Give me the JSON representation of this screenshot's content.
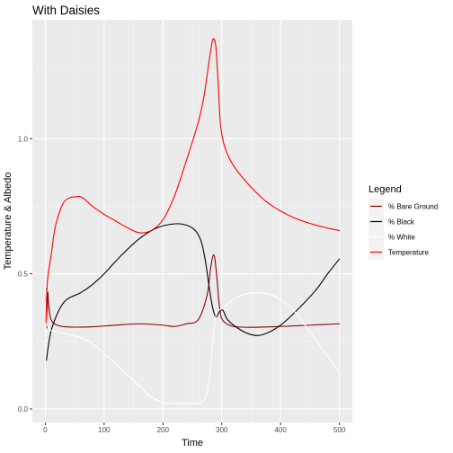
{
  "chart_data": {
    "type": "line",
    "title": "With Daisies",
    "xlabel": "Time",
    "ylabel": "Temperature & Albedo",
    "xlim": [
      -22,
      522
    ],
    "ylim": [
      -0.05,
      1.44
    ],
    "x_ticks": [
      0,
      100,
      200,
      300,
      400,
      500
    ],
    "y_ticks": [
      0.0,
      0.5,
      1.0
    ],
    "x_tick_labels": [
      "0",
      "100",
      "200",
      "300",
      "400",
      "500"
    ],
    "y_tick_labels": [
      "0.0",
      "0.5",
      "1.0"
    ],
    "grid": true,
    "legend": {
      "title": "Legend",
      "position": "right",
      "entries": [
        "% Bare Ground",
        "% Black",
        "% White",
        "Temperature"
      ]
    },
    "series": [
      {
        "name": "% Bare Ground",
        "color": "#8b0000",
        "points": [
          [
            1,
            0.4
          ],
          [
            2,
            0.44
          ],
          [
            3,
            0.3
          ],
          [
            4,
            0.43
          ],
          [
            6,
            0.38
          ],
          [
            10,
            0.33
          ],
          [
            20,
            0.31
          ],
          [
            40,
            0.303
          ],
          [
            80,
            0.304
          ],
          [
            120,
            0.31
          ],
          [
            160,
            0.315
          ],
          [
            200,
            0.31
          ],
          [
            220,
            0.305
          ],
          [
            240,
            0.315
          ],
          [
            260,
            0.33
          ],
          [
            275,
            0.42
          ],
          [
            281,
            0.52
          ],
          [
            285,
            0.565
          ],
          [
            288,
            0.56
          ],
          [
            292,
            0.48
          ],
          [
            295,
            0.4
          ],
          [
            298,
            0.35
          ],
          [
            300,
            0.335
          ],
          [
            305,
            0.32
          ],
          [
            320,
            0.305
          ],
          [
            350,
            0.302
          ],
          [
            400,
            0.305
          ],
          [
            450,
            0.31
          ],
          [
            500,
            0.315
          ]
        ]
      },
      {
        "name": "% Black",
        "color": "#000000",
        "points": [
          [
            2,
            0.18
          ],
          [
            5,
            0.23
          ],
          [
            10,
            0.29
          ],
          [
            20,
            0.35
          ],
          [
            30,
            0.39
          ],
          [
            40,
            0.41
          ],
          [
            60,
            0.43
          ],
          [
            80,
            0.46
          ],
          [
            100,
            0.5
          ],
          [
            130,
            0.57
          ],
          [
            160,
            0.63
          ],
          [
            190,
            0.67
          ],
          [
            220,
            0.685
          ],
          [
            240,
            0.68
          ],
          [
            255,
            0.66
          ],
          [
            265,
            0.62
          ],
          [
            272,
            0.55
          ],
          [
            278,
            0.46
          ],
          [
            284,
            0.38
          ],
          [
            290,
            0.34
          ],
          [
            296,
            0.36
          ],
          [
            302,
            0.365
          ],
          [
            310,
            0.33
          ],
          [
            330,
            0.295
          ],
          [
            350,
            0.275
          ],
          [
            370,
            0.275
          ],
          [
            400,
            0.31
          ],
          [
            430,
            0.37
          ],
          [
            460,
            0.44
          ],
          [
            480,
            0.5
          ],
          [
            500,
            0.555
          ]
        ]
      },
      {
        "name": "% White",
        "color": "#ffffff",
        "points": [
          [
            1,
            0.44
          ],
          [
            3,
            0.32
          ],
          [
            6,
            0.3
          ],
          [
            10,
            0.29
          ],
          [
            20,
            0.285
          ],
          [
            40,
            0.275
          ],
          [
            70,
            0.255
          ],
          [
            100,
            0.205
          ],
          [
            130,
            0.145
          ],
          [
            160,
            0.085
          ],
          [
            180,
            0.045
          ],
          [
            200,
            0.025
          ],
          [
            220,
            0.02
          ],
          [
            250,
            0.02
          ],
          [
            265,
            0.025
          ],
          [
            275,
            0.06
          ],
          [
            282,
            0.18
          ],
          [
            287,
            0.3
          ],
          [
            292,
            0.36
          ],
          [
            300,
            0.37
          ],
          [
            320,
            0.405
          ],
          [
            340,
            0.425
          ],
          [
            360,
            0.43
          ],
          [
            380,
            0.425
          ],
          [
            400,
            0.405
          ],
          [
            420,
            0.37
          ],
          [
            440,
            0.315
          ],
          [
            460,
            0.255
          ],
          [
            480,
            0.195
          ],
          [
            500,
            0.135
          ]
        ]
      },
      {
        "name": "Temperature",
        "color": "#ff0000",
        "points": [
          [
            1,
            0.32
          ],
          [
            3,
            0.45
          ],
          [
            5,
            0.5
          ],
          [
            10,
            0.57
          ],
          [
            15,
            0.65
          ],
          [
            20,
            0.7
          ],
          [
            30,
            0.76
          ],
          [
            40,
            0.78
          ],
          [
            50,
            0.785
          ],
          [
            60,
            0.785
          ],
          [
            70,
            0.77
          ],
          [
            80,
            0.75
          ],
          [
            100,
            0.72
          ],
          [
            120,
            0.695
          ],
          [
            140,
            0.67
          ],
          [
            160,
            0.652
          ],
          [
            180,
            0.66
          ],
          [
            200,
            0.7
          ],
          [
            220,
            0.79
          ],
          [
            240,
            0.92
          ],
          [
            260,
            1.06
          ],
          [
            270,
            1.16
          ],
          [
            278,
            1.28
          ],
          [
            283,
            1.35
          ],
          [
            286,
            1.37
          ],
          [
            290,
            1.34
          ],
          [
            294,
            1.2
          ],
          [
            298,
            1.05
          ],
          [
            305,
            0.97
          ],
          [
            320,
            0.9
          ],
          [
            350,
            0.82
          ],
          [
            380,
            0.76
          ],
          [
            420,
            0.71
          ],
          [
            460,
            0.68
          ],
          [
            500,
            0.66
          ]
        ]
      }
    ]
  }
}
